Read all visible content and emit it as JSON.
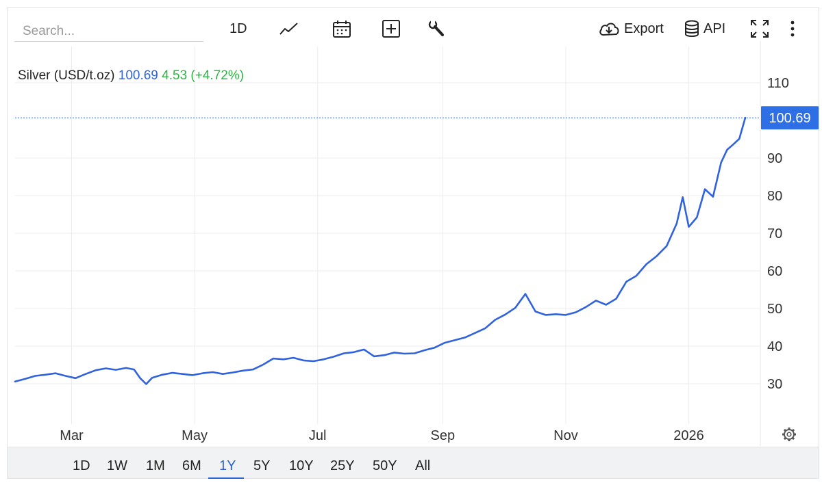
{
  "search": {
    "placeholder": "Search..."
  },
  "toolbar": {
    "interval_label": "1D",
    "export_label": "Export",
    "api_label": "API",
    "icons": [
      "line-chart-icon",
      "calendar-icon",
      "plus-box-icon",
      "wrench-icon",
      "cloud-download-icon",
      "database-icon",
      "fullscreen-icon",
      "more-vertical-icon"
    ]
  },
  "legend": {
    "name": "Silver (USD/t.oz)",
    "price": "100.69",
    "change": "4.53 (+4.72%)"
  },
  "colors": {
    "line": "#2f62dc",
    "price_text": "#2f62dc",
    "change_text": "#2fb344",
    "tag_bg": "#2f6fe6"
  },
  "chart_data": {
    "type": "line",
    "title": "",
    "xlabel": "",
    "ylabel": "",
    "series": [
      {
        "name": "Silver (USD/t.oz)",
        "x": [
          "2025-02-01",
          "2025-02-06",
          "2025-02-11",
          "2025-02-16",
          "2025-02-21",
          "2025-02-26",
          "2025-03-03",
          "2025-03-08",
          "2025-03-13",
          "2025-03-18",
          "2025-03-23",
          "2025-03-28",
          "2025-04-01",
          "2025-04-04",
          "2025-04-07",
          "2025-04-10",
          "2025-04-15",
          "2025-04-20",
          "2025-04-25",
          "2025-04-30",
          "2025-05-05",
          "2025-05-10",
          "2025-05-15",
          "2025-05-20",
          "2025-05-25",
          "2025-05-30",
          "2025-06-04",
          "2025-06-09",
          "2025-06-14",
          "2025-06-19",
          "2025-06-24",
          "2025-06-29",
          "2025-07-04",
          "2025-07-09",
          "2025-07-14",
          "2025-07-19",
          "2025-07-24",
          "2025-07-29",
          "2025-08-03",
          "2025-08-08",
          "2025-08-13",
          "2025-08-18",
          "2025-08-23",
          "2025-08-28",
          "2025-09-02",
          "2025-09-07",
          "2025-09-12",
          "2025-09-17",
          "2025-09-22",
          "2025-09-27",
          "2025-10-02",
          "2025-10-07",
          "2025-10-12",
          "2025-10-17",
          "2025-10-22",
          "2025-10-27",
          "2025-11-01",
          "2025-11-06",
          "2025-11-11",
          "2025-11-16",
          "2025-11-21",
          "2025-11-26",
          "2025-12-01",
          "2025-12-06",
          "2025-12-11",
          "2025-12-16",
          "2025-12-21",
          "2025-12-26",
          "2025-12-29",
          "2026-01-01",
          "2026-01-05",
          "2026-01-09",
          "2026-01-13",
          "2026-01-17",
          "2026-01-20",
          "2026-01-23",
          "2026-01-26",
          "2026-01-29"
        ],
        "values": [
          30.6,
          31.3,
          32.1,
          32.4,
          32.8,
          32.1,
          31.5,
          32.6,
          33.6,
          34.1,
          33.7,
          34.2,
          33.8,
          31.5,
          29.9,
          31.6,
          32.4,
          32.9,
          32.6,
          32.3,
          32.8,
          33.1,
          32.6,
          33.0,
          33.5,
          33.8,
          35.1,
          36.7,
          36.5,
          36.9,
          36.2,
          36.0,
          36.5,
          37.2,
          38.1,
          38.4,
          39.1,
          37.3,
          37.6,
          38.3,
          38.0,
          38.1,
          38.9,
          39.6,
          40.9,
          41.6,
          42.3,
          43.5,
          44.7,
          47.0,
          48.4,
          50.2,
          53.9,
          49.2,
          48.3,
          48.5,
          48.3,
          49.0,
          50.4,
          52.1,
          51.0,
          52.6,
          57.1,
          58.7,
          61.8,
          63.9,
          66.6,
          72.6,
          79.6,
          71.7,
          74.2,
          81.7,
          79.7,
          88.8,
          92.2,
          93.6,
          95.1,
          100.69
        ]
      }
    ],
    "x_ticks": [
      "Mar",
      "May",
      "Jul",
      "Sep",
      "Nov",
      "2026"
    ],
    "x_tick_dates": [
      "2025-03-01",
      "2025-05-01",
      "2025-07-01",
      "2025-09-01",
      "2025-11-01",
      "2026-01-01"
    ],
    "yticks": [
      30,
      40,
      50,
      60,
      70,
      80,
      90,
      110
    ],
    "ylim": [
      20,
      115
    ],
    "last_value_label": "100.69",
    "grid": true
  },
  "ranges": {
    "items": [
      "1D",
      "1W",
      "1M",
      "6M",
      "1Y",
      "5Y",
      "10Y",
      "25Y",
      "50Y",
      "All"
    ],
    "active": "1Y"
  }
}
